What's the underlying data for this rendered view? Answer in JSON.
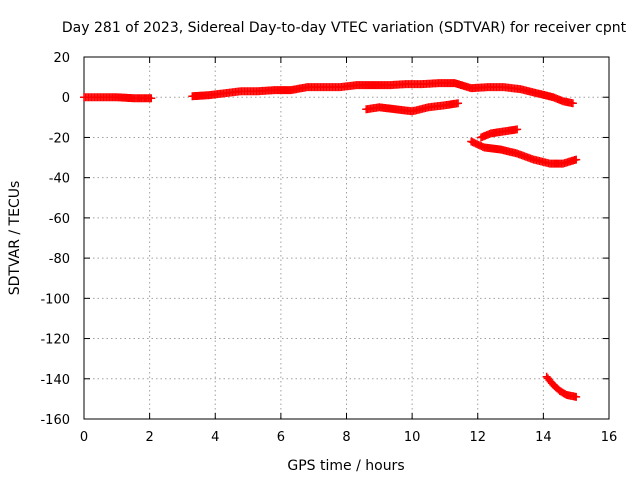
{
  "chart_data": {
    "type": "scatter",
    "title": "Day 281 of 2023, Sidereal Day-to-day VTEC variation (SDTVAR) for receiver cpnt",
    "xlabel": "GPS time / hours",
    "ylabel": "SDTVAR / TECUs",
    "xlim": [
      0,
      16
    ],
    "ylim": [
      -160,
      20
    ],
    "xticks": [
      "0",
      "2",
      "4",
      "6",
      "8",
      "10",
      "12",
      "14",
      "16"
    ],
    "yticks": [
      "20",
      "0",
      "-20",
      "-40",
      "-60",
      "-80",
      "-100",
      "-120",
      "-140",
      "-160"
    ],
    "grid": true,
    "marker": "plus",
    "color": "#ff0000",
    "series": [
      {
        "x": [
          0.0,
          0.5,
          1.0,
          1.5,
          2.05
        ],
        "y": [
          0,
          0,
          0,
          -0.5,
          -0.5
        ]
      },
      {
        "x": [
          3.3,
          3.8,
          4.3,
          4.8,
          5.3,
          5.8,
          6.3,
          6.8,
          7.3,
          7.8,
          8.3,
          8.8,
          9.3,
          9.8,
          10.3,
          10.8,
          11.3,
          11.8,
          12.3,
          12.8,
          13.3,
          13.8,
          14.3,
          14.6,
          14.9
        ],
        "y": [
          0.5,
          1,
          2,
          3,
          3,
          3.5,
          3.5,
          5,
          5,
          5,
          6,
          6,
          6,
          6.5,
          6.5,
          7,
          7,
          4.5,
          5,
          5,
          4,
          2,
          0,
          -2,
          -3
        ]
      },
      {
        "x": [
          8.6,
          9.0,
          9.5,
          10.0,
          10.5,
          11.0,
          11.4
        ],
        "y": [
          -6,
          -5,
          -6,
          -7,
          -5,
          -4,
          -3
        ]
      },
      {
        "x": [
          12.1,
          12.4,
          12.8,
          13.2
        ],
        "y": [
          -20,
          -18,
          -17,
          -16
        ]
      },
      {
        "x": [
          11.8,
          12.2,
          12.7,
          13.2,
          13.7,
          14.2,
          14.6,
          15.0
        ],
        "y": [
          -22,
          -25,
          -26,
          -28,
          -31,
          -33,
          -33,
          -31
        ]
      },
      {
        "x": [
          14.1,
          14.3,
          14.5,
          14.7,
          15.0
        ],
        "y": [
          -139,
          -143,
          -146,
          -148,
          -149
        ]
      }
    ]
  }
}
